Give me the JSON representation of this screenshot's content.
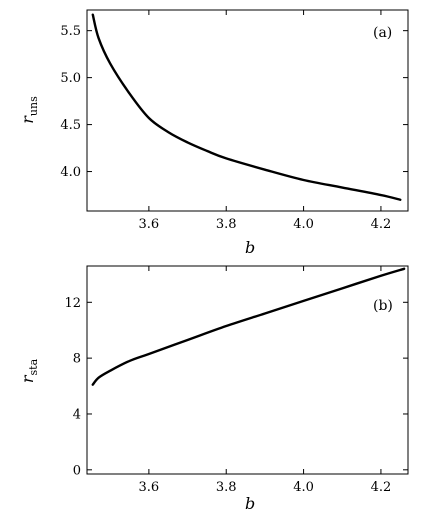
{
  "chart_data": [
    {
      "panel": "(a)",
      "type": "line",
      "xlabel": "b",
      "ylabel": {
        "main": "r",
        "sub": "uns"
      },
      "xlim": [
        3.44,
        4.27
      ],
      "ylim": [
        3.58,
        5.72
      ],
      "xticks": [
        3.6,
        3.8,
        4.0,
        4.2
      ],
      "xtick_labels": [
        "3.6",
        "3.8",
        "4.0",
        "4.2"
      ],
      "yticks": [
        4.0,
        4.5,
        5.0,
        5.5
      ],
      "ytick_labels": [
        "4.0",
        "4.5",
        "5.0",
        "5.5"
      ],
      "series": [
        {
          "x": [
            3.455,
            3.47,
            3.5,
            3.55,
            3.6,
            3.65,
            3.7,
            3.75,
            3.8,
            3.9,
            4.0,
            4.1,
            4.2,
            4.25
          ],
          "y": [
            5.67,
            5.42,
            5.15,
            4.83,
            4.57,
            4.42,
            4.31,
            4.22,
            4.14,
            4.02,
            3.91,
            3.83,
            3.75,
            3.7
          ]
        }
      ]
    },
    {
      "panel": "(b)",
      "type": "line",
      "xlabel": "b",
      "ylabel": {
        "main": "r",
        "sub": "sta"
      },
      "xlim": [
        3.44,
        4.27
      ],
      "ylim": [
        -0.3,
        14.6
      ],
      "xticks": [
        3.6,
        3.8,
        4.0,
        4.2
      ],
      "xtick_labels": [
        "3.6",
        "3.8",
        "4.0",
        "4.2"
      ],
      "yticks": [
        0,
        4,
        8,
        12
      ],
      "ytick_labels": [
        "0",
        "4",
        "8",
        "12"
      ],
      "series": [
        {
          "x": [
            3.455,
            3.47,
            3.5,
            3.55,
            3.6,
            3.7,
            3.8,
            3.9,
            4.0,
            4.1,
            4.2,
            4.26
          ],
          "y": [
            6.1,
            6.6,
            7.1,
            7.8,
            8.3,
            9.3,
            10.3,
            11.2,
            12.1,
            13.0,
            13.9,
            14.4
          ]
        }
      ]
    }
  ]
}
